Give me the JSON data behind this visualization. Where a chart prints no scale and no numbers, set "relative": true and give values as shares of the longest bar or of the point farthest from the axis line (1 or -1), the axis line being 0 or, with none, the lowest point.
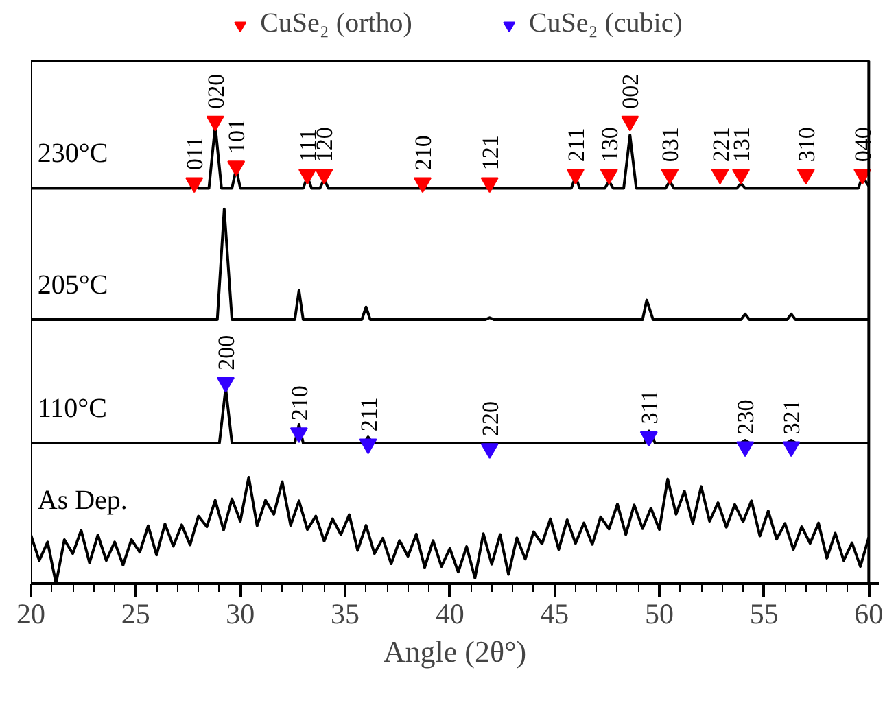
{
  "chart_data": {
    "type": "line",
    "relative": true,
    "xlabel": "Angle (2θ°)",
    "xlim": [
      20,
      60
    ],
    "xticks": [
      20,
      25,
      30,
      35,
      40,
      45,
      50,
      55,
      60
    ],
    "legend": "top",
    "line_style": "solid",
    "series": [
      {
        "name": "230°C",
        "color": "#000000",
        "x": [
          20,
          27.6,
          27.8,
          28.0,
          28.5,
          28.8,
          29.1,
          29.6,
          29.8,
          30.0,
          33.0,
          33.2,
          33.4,
          33.8,
          34.0,
          34.2,
          45.8,
          46.0,
          46.2,
          47.4,
          47.6,
          47.8,
          48.3,
          48.6,
          48.9,
          50.3,
          50.5,
          50.7,
          53.7,
          53.9,
          54.1,
          59.5,
          59.7,
          60
        ],
        "values": [
          0.855,
          0.855,
          0.865,
          0.855,
          0.855,
          0.99,
          0.855,
          0.855,
          0.897,
          0.855,
          0.855,
          0.88,
          0.855,
          0.855,
          0.875,
          0.855,
          0.855,
          0.88,
          0.855,
          0.855,
          0.87,
          0.855,
          0.855,
          0.97,
          0.855,
          0.855,
          0.87,
          0.855,
          0.855,
          0.865,
          0.855,
          0.855,
          0.88,
          0.86
        ]
      },
      {
        "name": "205°C",
        "color": "#000000",
        "x": [
          20,
          28.9,
          29.23,
          29.6,
          32.6,
          32.8,
          33.0,
          35.8,
          36.0,
          36.2,
          41.7,
          41.9,
          42.1,
          49.2,
          49.4,
          49.7,
          53.9,
          54.1,
          54.3,
          56.1,
          56.3,
          56.5,
          60
        ],
        "values": [
          0.571,
          0.571,
          0.81,
          0.571,
          0.571,
          0.634,
          0.571,
          0.571,
          0.598,
          0.571,
          0.571,
          0.575,
          0.571,
          0.571,
          0.613,
          0.571,
          0.571,
          0.583,
          0.571,
          0.571,
          0.583,
          0.571,
          0.571
        ]
      },
      {
        "name": "110°C",
        "color": "#000000",
        "x": [
          20,
          29.0,
          29.3,
          29.6,
          32.6,
          32.8,
          33.0,
          35.9,
          36.1,
          36.3,
          49.3,
          49.5,
          49.8,
          53.9,
          54.1,
          54.3,
          56.1,
          56.3,
          56.5,
          60
        ],
        "values": [
          0.304,
          0.304,
          0.423,
          0.304,
          0.304,
          0.344,
          0.304,
          0.304,
          0.317,
          0.304,
          0.304,
          0.33,
          0.304,
          0.304,
          0.31,
          0.304,
          0.304,
          0.31,
          0.304,
          0.304
        ]
      },
      {
        "name": "As Dep.",
        "color": "#000000",
        "x": [
          20.0,
          20.4,
          20.8,
          21.2,
          21.6,
          22.0,
          22.4,
          22.8,
          23.2,
          23.6,
          24.0,
          24.4,
          24.8,
          25.2,
          25.6,
          26.0,
          26.4,
          26.8,
          27.2,
          27.6,
          28.0,
          28.4,
          28.8,
          29.2,
          29.6,
          30.0,
          30.4,
          30.8,
          31.2,
          31.6,
          32.0,
          32.4,
          32.8,
          33.2,
          33.6,
          34.0,
          34.4,
          34.8,
          35.2,
          35.6,
          36.0,
          36.4,
          36.8,
          37.2,
          37.6,
          38.0,
          38.4,
          38.8,
          39.2,
          39.6,
          40.0,
          40.4,
          40.8,
          41.2,
          41.6,
          42.0,
          42.4,
          42.8,
          43.2,
          43.6,
          44.0,
          44.4,
          44.8,
          45.2,
          45.6,
          46.0,
          46.4,
          46.8,
          47.2,
          47.6,
          48.0,
          48.4,
          48.8,
          49.2,
          49.6,
          50.0,
          50.4,
          50.8,
          51.2,
          51.6,
          52.0,
          52.4,
          52.8,
          53.2,
          53.6,
          54.0,
          54.4,
          54.8,
          55.2,
          55.6,
          56.0,
          56.4,
          56.8,
          57.2,
          57.6,
          58.0,
          58.4,
          58.8,
          59.2,
          59.6,
          60.0
        ],
        "values": [
          0.105,
          0.05,
          0.09,
          0.0,
          0.095,
          0.065,
          0.115,
          0.045,
          0.105,
          0.05,
          0.09,
          0.04,
          0.095,
          0.068,
          0.125,
          0.062,
          0.129,
          0.081,
          0.127,
          0.084,
          0.146,
          0.123,
          0.18,
          0.116,
          0.183,
          0.135,
          0.23,
          0.125,
          0.18,
          0.15,
          0.22,
          0.126,
          0.179,
          0.117,
          0.146,
          0.092,
          0.14,
          0.106,
          0.149,
          0.072,
          0.126,
          0.065,
          0.098,
          0.043,
          0.093,
          0.059,
          0.107,
          0.035,
          0.093,
          0.037,
          0.076,
          0.025,
          0.08,
          0.012,
          0.108,
          0.042,
          0.106,
          0.02,
          0.099,
          0.053,
          0.112,
          0.086,
          0.14,
          0.074,
          0.138,
          0.087,
          0.131,
          0.085,
          0.144,
          0.118,
          0.172,
          0.106,
          0.17,
          0.119,
          0.163,
          0.117,
          0.226,
          0.15,
          0.2,
          0.13,
          0.21,
          0.135,
          0.175,
          0.122,
          0.171,
          0.134,
          0.179,
          0.103,
          0.157,
          0.096,
          0.13,
          0.074,
          0.123,
          0.087,
          0.131,
          0.055,
          0.109,
          0.05,
          0.088,
          0.037,
          0.1
        ]
      },
      {
        "name": "CuSe₂ (ortho)",
        "type": "scatter",
        "marker": "triangle",
        "color": "#ff0000",
        "x": [
          27.8,
          28.8,
          29.8,
          33.2,
          34.0,
          38.7,
          41.9,
          46.0,
          47.6,
          48.6,
          50.5,
          52.9,
          53.9,
          57.0,
          59.7
        ],
        "values": [
          0.867,
          1.0,
          0.903,
          0.885,
          0.885,
          0.867,
          0.867,
          0.885,
          0.885,
          1.0,
          0.885,
          0.885,
          0.885,
          0.885,
          0.885
        ]
      },
      {
        "name": "CuSe₂ (cubic)",
        "type": "scatter",
        "marker": "triangle",
        "color": "#3300ff",
        "x": [
          29.3,
          32.8,
          36.1,
          41.9,
          49.5,
          54.1,
          56.3
        ],
        "values": [
          0.435,
          0.326,
          0.302,
          0.292,
          0.318,
          0.296,
          0.296
        ]
      }
    ],
    "annotations": [
      {
        "text": "011",
        "x": 27.8,
        "y": 0.867
      },
      {
        "text": "020",
        "x": 28.8,
        "y": 1.0
      },
      {
        "text": "101",
        "x": 29.8,
        "y": 0.903
      },
      {
        "text": "111",
        "x": 33.2,
        "y": 0.885
      },
      {
        "text": "120",
        "x": 34.0,
        "y": 0.885
      },
      {
        "text": "210",
        "x": 38.7,
        "y": 0.867
      },
      {
        "text": "121",
        "x": 41.9,
        "y": 0.867
      },
      {
        "text": "211",
        "x": 46.0,
        "y": 0.885
      },
      {
        "text": "130",
        "x": 47.6,
        "y": 0.885
      },
      {
        "text": "002",
        "x": 48.6,
        "y": 1.0
      },
      {
        "text": "031",
        "x": 50.5,
        "y": 0.885
      },
      {
        "text": "221",
        "x": 52.9,
        "y": 0.885
      },
      {
        "text": "131",
        "x": 53.9,
        "y": 0.885
      },
      {
        "text": "310",
        "x": 57.0,
        "y": 0.885
      },
      {
        "text": "040",
        "x": 59.7,
        "y": 0.885
      },
      {
        "text": "200",
        "x": 29.3,
        "y": 0.435
      },
      {
        "text": "210",
        "x": 32.8,
        "y": 0.326
      },
      {
        "text": "211",
        "x": 36.1,
        "y": 0.302
      },
      {
        "text": "220",
        "x": 41.9,
        "y": 0.292
      },
      {
        "text": "311",
        "x": 49.5,
        "y": 0.318
      },
      {
        "text": "230",
        "x": 54.1,
        "y": 0.296
      },
      {
        "text": "321",
        "x": 56.3,
        "y": 0.296
      }
    ]
  }
}
